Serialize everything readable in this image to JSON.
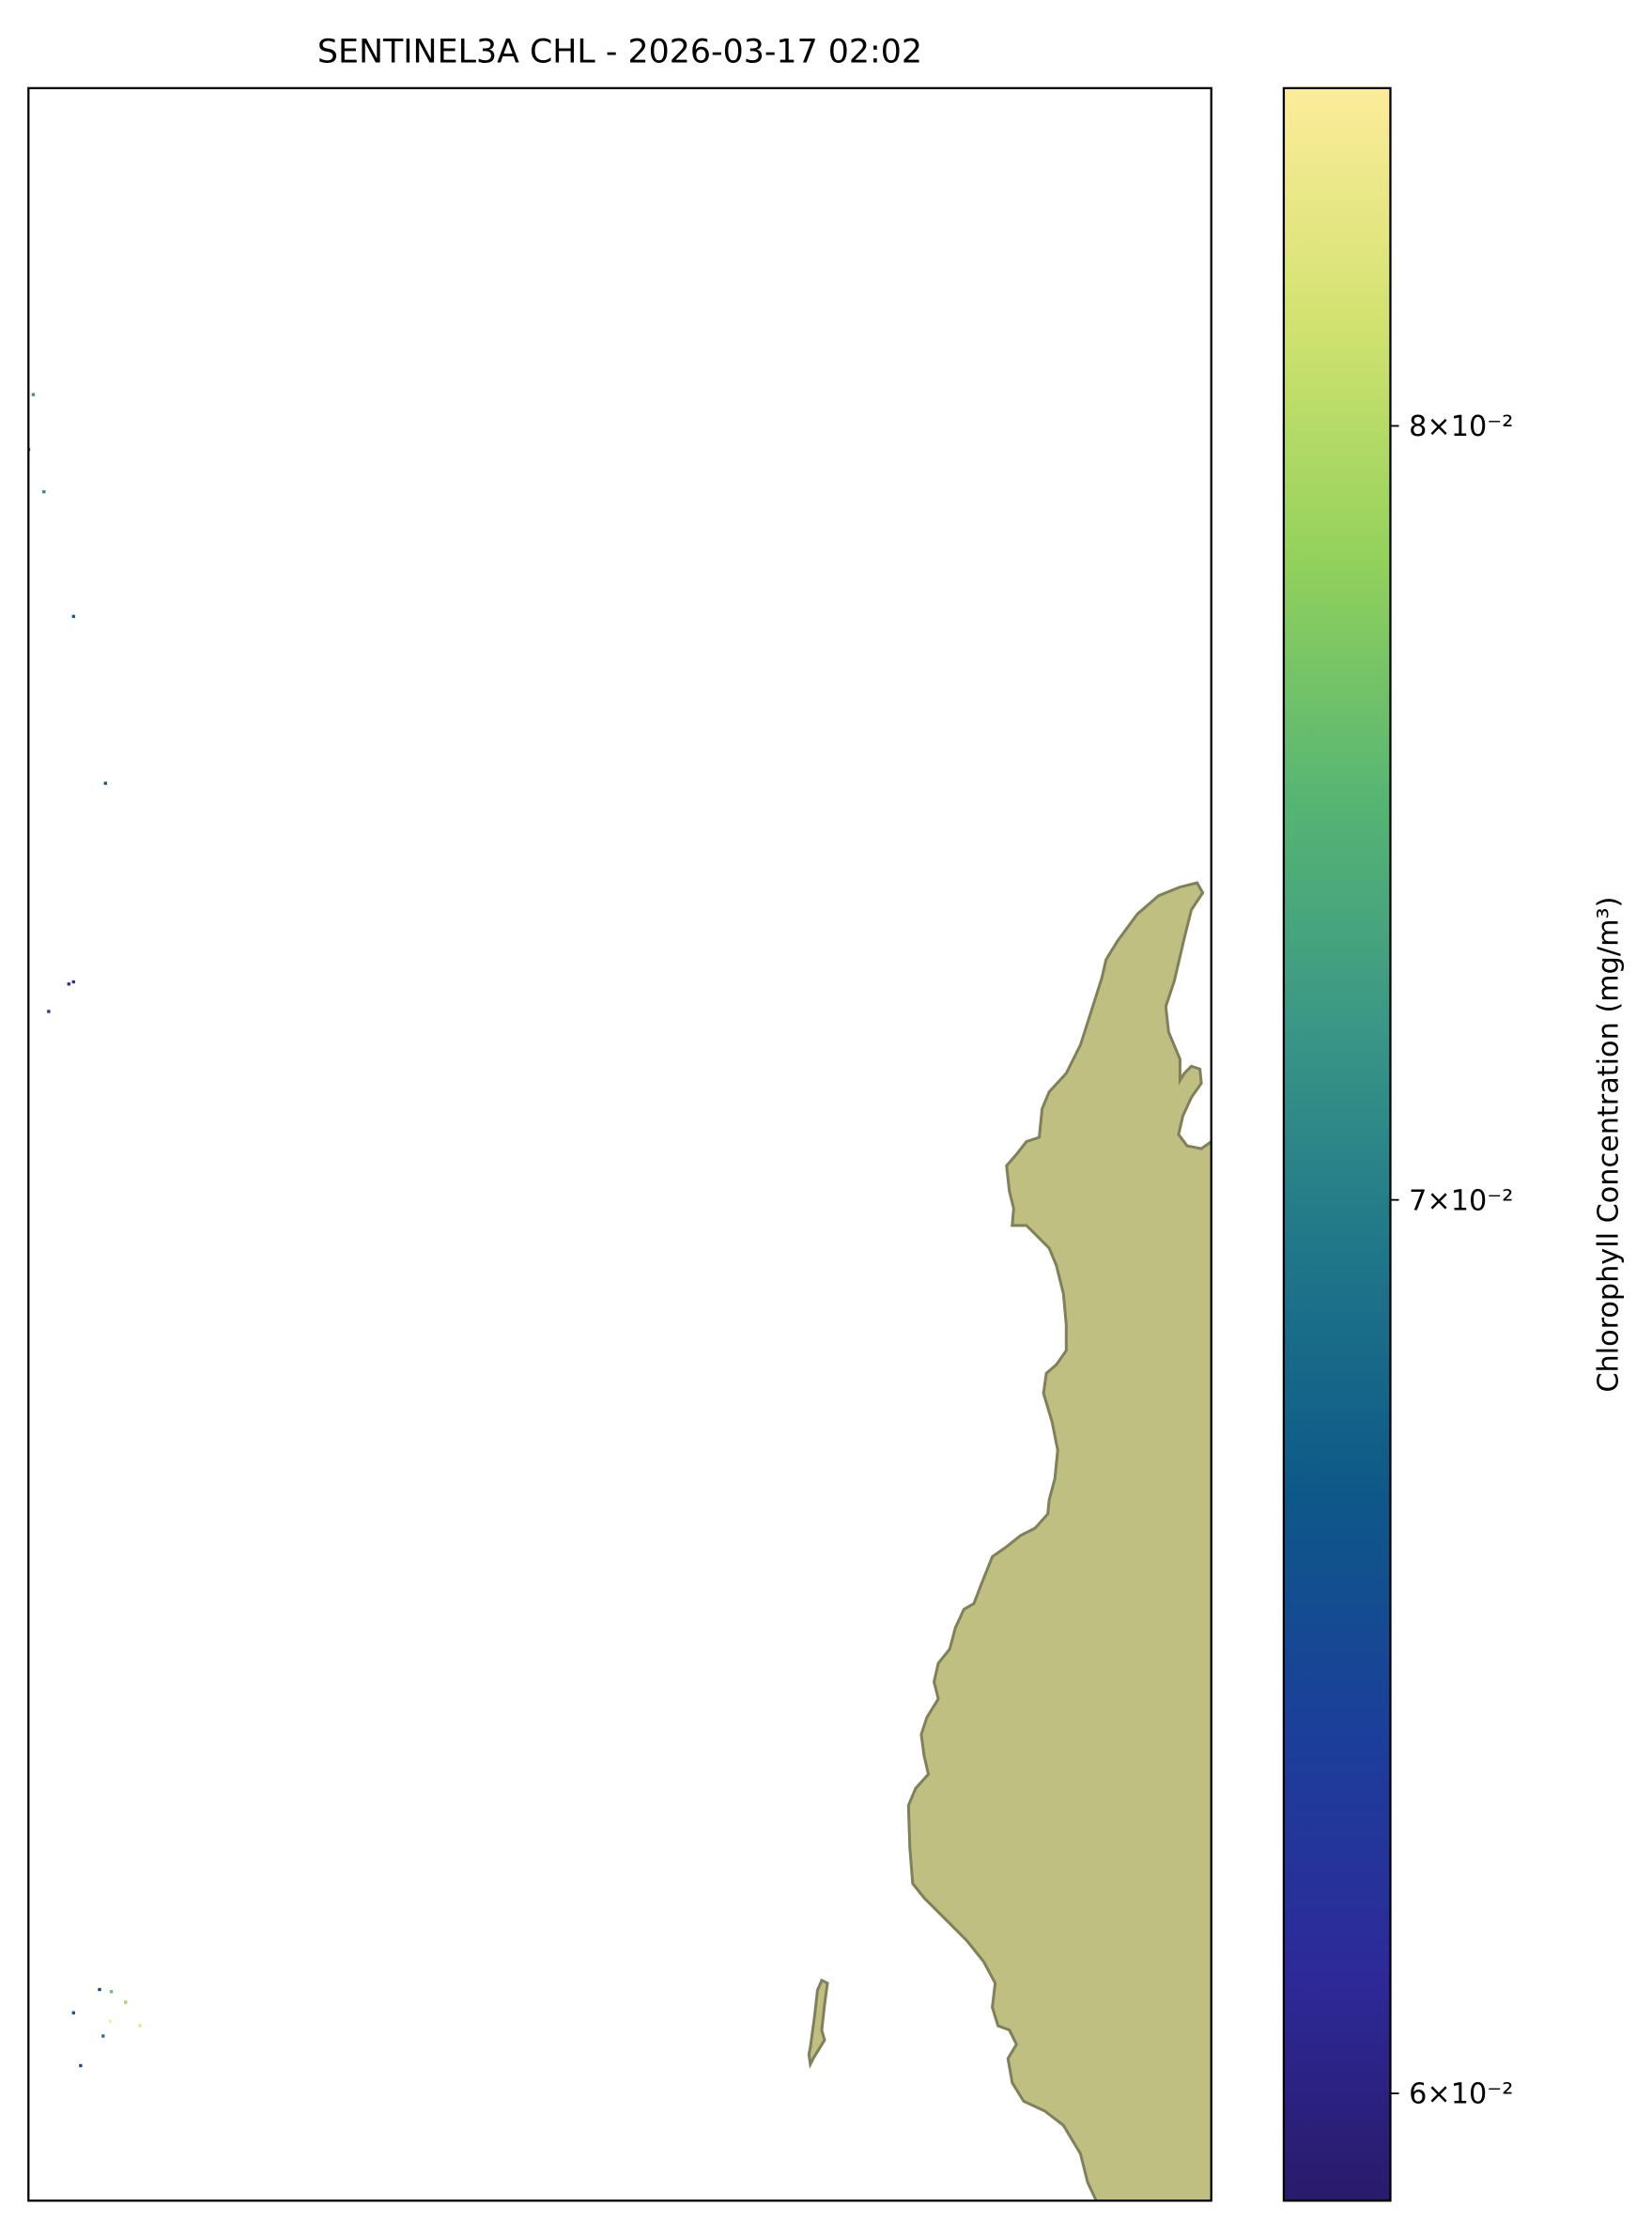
{
  "chart_data": {
    "type": "map",
    "title": "SENTINEL3A CHL - 2026-03-17 02:02",
    "colorbar_label": "Chlorophyll Concentration (mg/m³)",
    "log_scale": true,
    "clim": [
      0.0589,
      0.0848
    ],
    "cticks": [
      {
        "value": 0.06,
        "label": "6×10⁻²"
      },
      {
        "value": 0.07,
        "label": "7×10⁻²"
      },
      {
        "value": 0.08,
        "label": "8×10⁻²"
      }
    ],
    "colormap": [
      "#2a1a6b",
      "#2d2a9a",
      "#1b3f9a",
      "#0e5889",
      "#1f7589",
      "#3a9786",
      "#58b672",
      "#93d15c",
      "#d2e270",
      "#fdec9b"
    ],
    "land_color": "#bfbf82",
    "xlim": [
      0,
      1
    ],
    "ylim": [
      0,
      1
    ],
    "x": [
      0.004,
      0.0,
      0.013,
      0.038,
      0.065,
      0.034,
      0.038,
      0.017,
      0.06,
      0.07,
      0.082,
      0.038,
      0.069,
      0.094,
      0.063,
      0.044
    ],
    "y": [
      0.855,
      0.829,
      0.809,
      0.75,
      0.671,
      0.576,
      0.577,
      0.563,
      0.1,
      0.099,
      0.094,
      0.089,
      0.085,
      0.083,
      0.078,
      0.064
    ],
    "values": [
      0.072,
      0.064,
      0.071,
      0.067,
      0.066,
      0.062,
      0.062,
      0.063,
      0.064,
      0.076,
      0.079,
      0.066,
      0.085,
      0.083,
      0.069,
      0.065
    ]
  }
}
